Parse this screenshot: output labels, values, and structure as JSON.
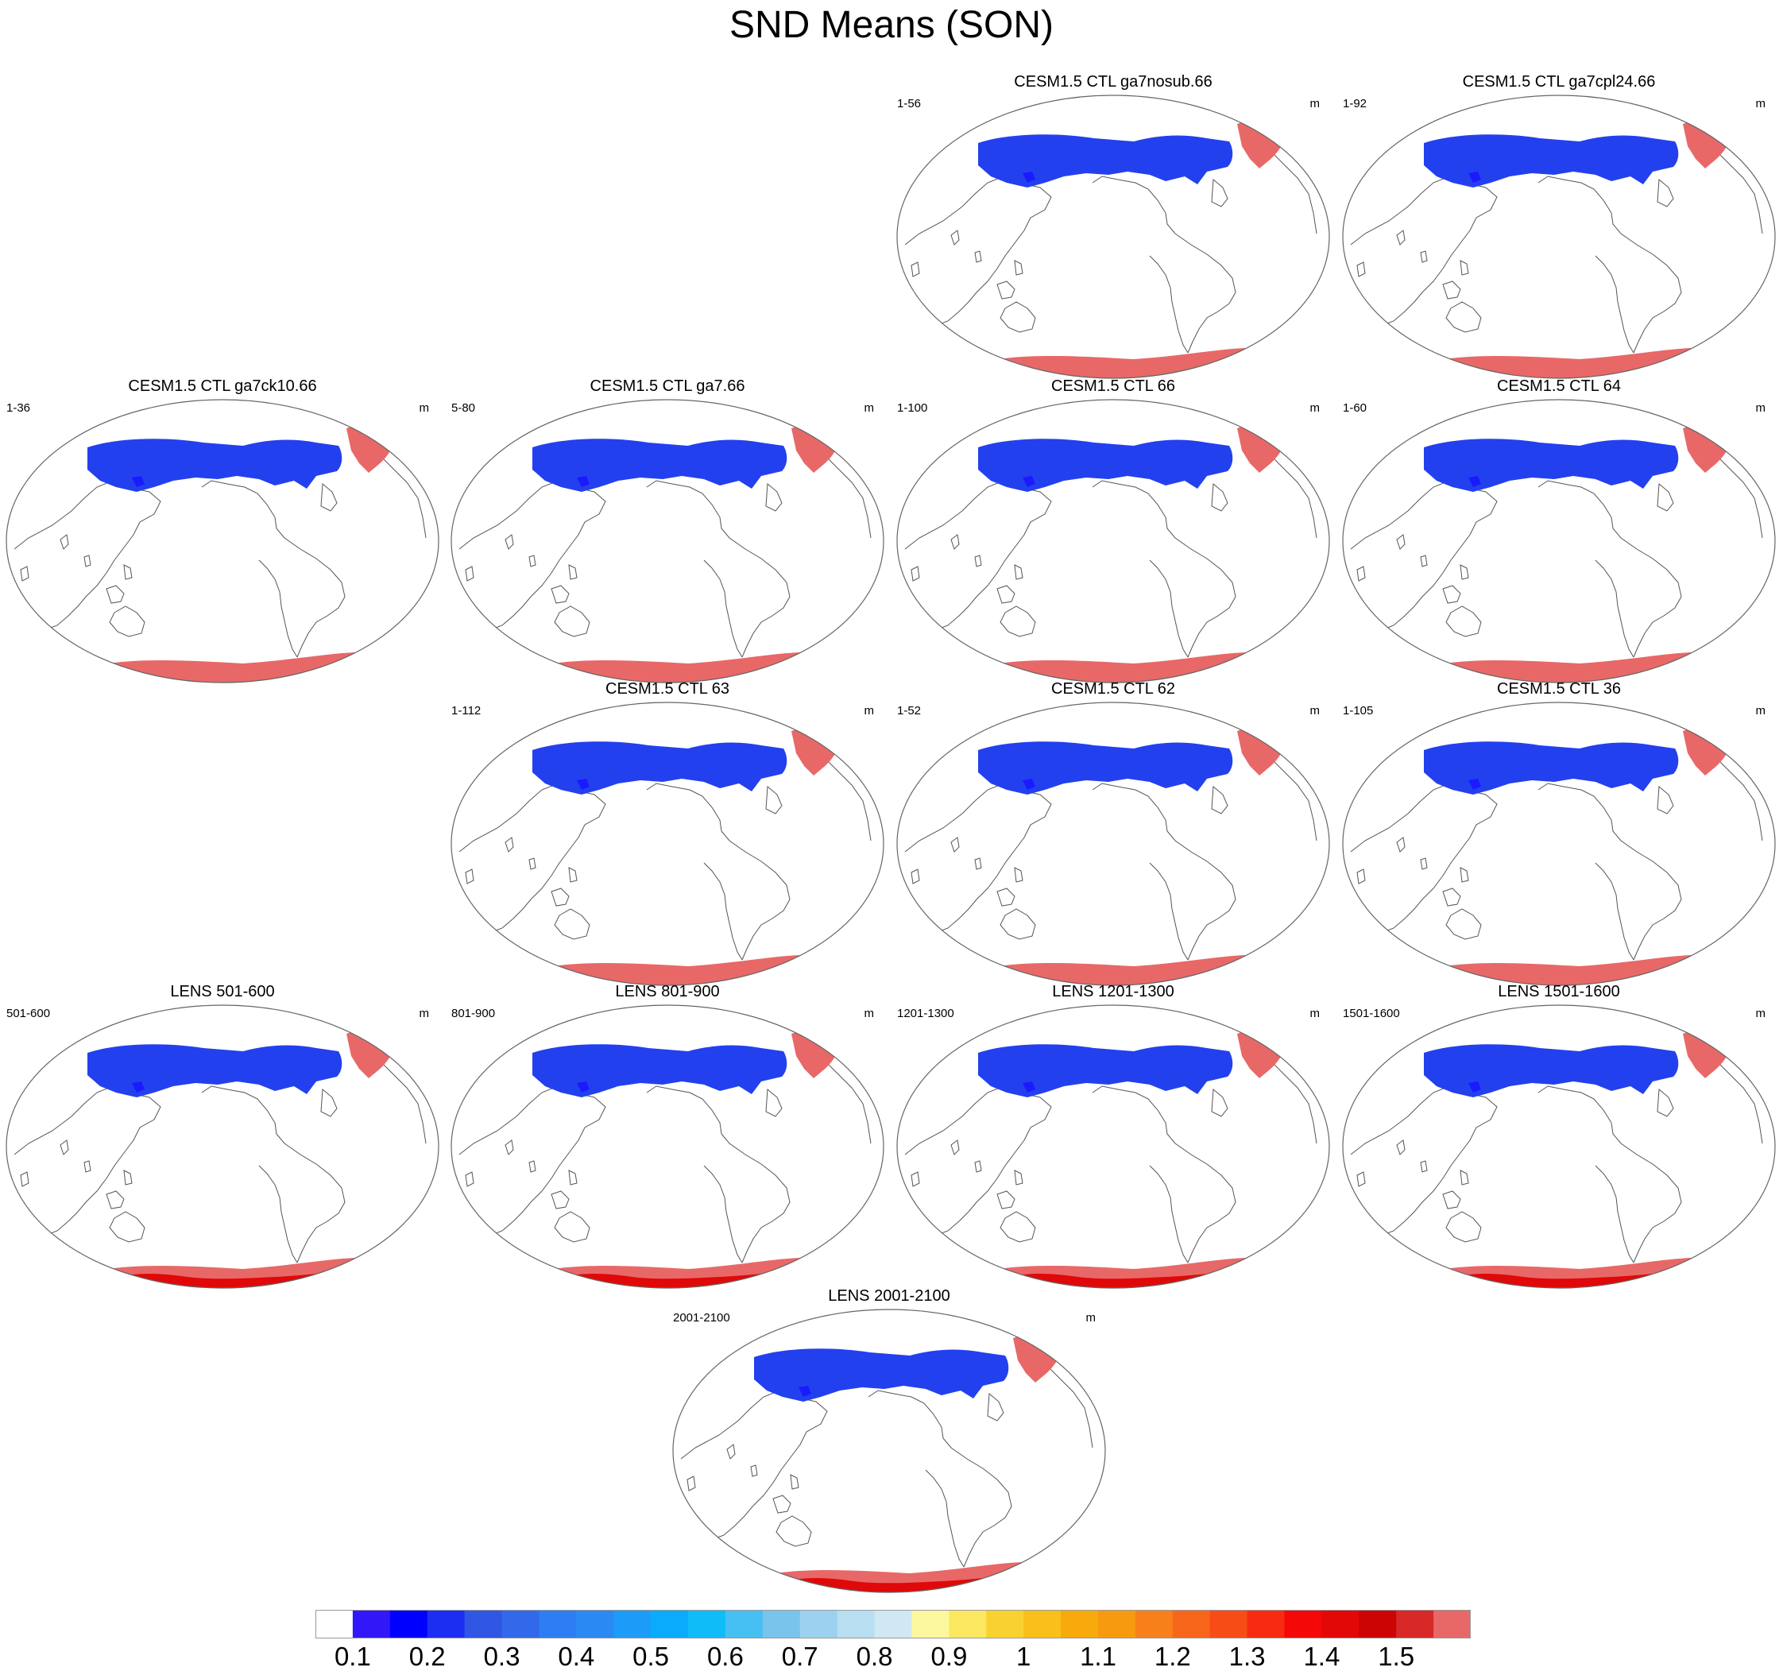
{
  "title": "SND Means (SON)",
  "panels": [
    {
      "title": "CESM1.5 CTL ga7nosub.66",
      "years": "1-56",
      "unit": "m",
      "style": "ctl"
    },
    {
      "title": "CESM1.5 CTL ga7cpl24.66",
      "years": "1-92",
      "unit": "m",
      "style": "ctl"
    },
    {
      "title": "CESM1.5 CTL ga7ck10.66",
      "years": "1-36",
      "unit": "m",
      "style": "ctl"
    },
    {
      "title": "CESM1.5 CTL ga7.66",
      "years": "5-80",
      "unit": "m",
      "style": "ctl"
    },
    {
      "title": "CESM1.5 CTL 66",
      "years": "1-100",
      "unit": "m",
      "style": "ctl"
    },
    {
      "title": "CESM1.5 CTL 64",
      "years": "1-60",
      "unit": "m",
      "style": "ctl"
    },
    {
      "title": "CESM1.5 CTL 63",
      "years": "1-112",
      "unit": "m",
      "style": "ctl"
    },
    {
      "title": "CESM1.5 CTL 62",
      "years": "1-52",
      "unit": "m",
      "style": "ctl"
    },
    {
      "title": "CESM1.5 CTL 36",
      "years": "1-105",
      "unit": "m",
      "style": "ctl"
    },
    {
      "title": "LENS 501-600",
      "years": "501-600",
      "unit": "m",
      "style": "lens"
    },
    {
      "title": "LENS 801-900",
      "years": "801-900",
      "unit": "m",
      "style": "lens"
    },
    {
      "title": "LENS 1201-1300",
      "years": "1201-1300",
      "unit": "m",
      "style": "lens"
    },
    {
      "title": "LENS 1501-1600",
      "years": "1501-1600",
      "unit": "m",
      "style": "lens"
    },
    {
      "title": "LENS 2001-2100",
      "years": "2001-2100",
      "unit": "m",
      "style": "lens"
    }
  ],
  "colorbar": {
    "colors": [
      "#ffffff",
      "#3218f8",
      "#0000ff",
      "#1c2ef2",
      "#3056e4",
      "#3169ea",
      "#2f7df2",
      "#2a89f2",
      "#1c9cf8",
      "#08acfa",
      "#10bcf8",
      "#46c0f2",
      "#78c4ea",
      "#9cd2f0",
      "#b8def2",
      "#d0e8f4",
      "#fcf8a0",
      "#fce860",
      "#fad230",
      "#f8c018",
      "#f8aa0c",
      "#f89a10",
      "#f8801a",
      "#f8661c",
      "#f84c16",
      "#f82a10",
      "#f40808",
      "#e20808",
      "#cc0404",
      "#d82828",
      "#e86868"
    ],
    "labels": [
      "0.1",
      "0.2",
      "0.3",
      "0.4",
      "0.5",
      "0.6",
      "0.7",
      "0.8",
      "0.9",
      "1",
      "1.1",
      "1.2",
      "1.3",
      "1.4",
      "1.5"
    ]
  }
}
